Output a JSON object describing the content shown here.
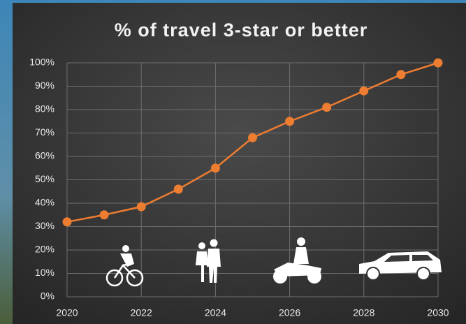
{
  "chart_data": {
    "type": "line",
    "title": "% of travel 3-star or better",
    "x": [
      2020,
      2021,
      2022,
      2023,
      2024,
      2025,
      2026,
      2027,
      2028,
      2029,
      2030
    ],
    "values": [
      32,
      35,
      38.5,
      46,
      55,
      68,
      75,
      81,
      88,
      95,
      100
    ],
    "color": "#ed7d31",
    "xlim": [
      2020,
      2030
    ],
    "xticks": [
      2020,
      2022,
      2024,
      2026,
      2028,
      2030
    ],
    "ylim": [
      0,
      100
    ],
    "yticks": [
      {
        "value": 0,
        "label": "0%"
      },
      {
        "value": 10,
        "label": "10%"
      },
      {
        "value": 20,
        "label": "20%"
      },
      {
        "value": 30,
        "label": "30%"
      },
      {
        "value": 40,
        "label": "40%"
      },
      {
        "value": 50,
        "label": "50%"
      },
      {
        "value": 60,
        "label": "60%"
      },
      {
        "value": 70,
        "label": "70%"
      },
      {
        "value": 80,
        "label": "80%"
      },
      {
        "value": 90,
        "label": "90%"
      },
      {
        "value": 100,
        "label": "100%"
      }
    ],
    "grid": true
  }
}
